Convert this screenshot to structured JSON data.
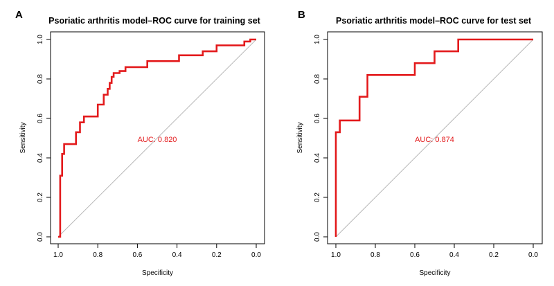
{
  "chart_data": [
    {
      "type": "line",
      "panel_label": "A",
      "title": "Psoriatic arthritis model–ROC curve for training set",
      "xlabel": "Specificity",
      "ylabel": "Sensitivity",
      "xlim": [
        1.0,
        0.0
      ],
      "ylim": [
        0.0,
        1.0
      ],
      "x_reversed": true,
      "x_ticks": [
        1.0,
        0.8,
        0.6,
        0.4,
        0.2,
        0.0
      ],
      "x_tick_labels": [
        "1.0",
        "0.8",
        "0.6",
        "0.4",
        "0.2",
        "0.0"
      ],
      "y_ticks": [
        0.0,
        0.2,
        0.4,
        0.6,
        0.8,
        1.0
      ],
      "y_tick_labels": [
        "0.0",
        "0.2",
        "0.4",
        "0.6",
        "0.8",
        "1.0"
      ],
      "grid": false,
      "reference_line": true,
      "annotation": {
        "text": "AUC: 0.820",
        "x": 0.5,
        "y": 0.48
      },
      "line_color": "#e31a1c",
      "reference_color": "#b8b8b8",
      "series": [
        {
          "specificity": [
            1.0,
            0.99,
            0.99,
            0.98,
            0.98,
            0.97,
            0.97,
            0.94,
            0.94,
            0.91,
            0.91,
            0.89,
            0.89,
            0.87,
            0.87,
            0.8,
            0.8,
            0.77,
            0.77,
            0.75,
            0.75,
            0.74,
            0.74,
            0.73,
            0.73,
            0.72,
            0.72,
            0.69,
            0.69,
            0.66,
            0.66,
            0.55,
            0.55,
            0.39,
            0.39,
            0.27,
            0.27,
            0.2,
            0.2,
            0.06,
            0.06,
            0.03,
            0.03,
            0.0
          ],
          "sensitivity": [
            0.0,
            0.0,
            0.31,
            0.31,
            0.42,
            0.42,
            0.47,
            0.47,
            0.47,
            0.47,
            0.53,
            0.53,
            0.58,
            0.58,
            0.61,
            0.61,
            0.67,
            0.67,
            0.72,
            0.72,
            0.75,
            0.75,
            0.78,
            0.78,
            0.81,
            0.81,
            0.83,
            0.83,
            0.84,
            0.84,
            0.86,
            0.86,
            0.89,
            0.89,
            0.92,
            0.92,
            0.94,
            0.94,
            0.97,
            0.97,
            0.99,
            0.99,
            1.0,
            1.0
          ]
        }
      ]
    },
    {
      "type": "line",
      "panel_label": "B",
      "title": "Psoriatic arthritis model–ROC curve for test set",
      "xlabel": "Specificity",
      "ylabel": "Sensitivity",
      "xlim": [
        1.0,
        0.0
      ],
      "ylim": [
        0.0,
        1.0
      ],
      "x_reversed": true,
      "x_ticks": [
        1.0,
        0.8,
        0.6,
        0.4,
        0.2,
        0.0
      ],
      "x_tick_labels": [
        "1.0",
        "0.8",
        "0.6",
        "0.4",
        "0.2",
        "0.0"
      ],
      "y_ticks": [
        0.0,
        0.2,
        0.4,
        0.6,
        0.8,
        1.0
      ],
      "y_tick_labels": [
        "0.0",
        "0.2",
        "0.4",
        "0.6",
        "0.8",
        "1.0"
      ],
      "grid": false,
      "reference_line": true,
      "annotation": {
        "text": "AUC: 0.874",
        "x": 0.5,
        "y": 0.48
      },
      "line_color": "#e31a1c",
      "reference_color": "#b8b8b8",
      "series": [
        {
          "specificity": [
            1.0,
            1.0,
            0.98,
            0.98,
            0.96,
            0.96,
            0.88,
            0.88,
            0.84,
            0.84,
            0.6,
            0.6,
            0.5,
            0.5,
            0.38,
            0.38,
            0.0
          ],
          "sensitivity": [
            0.0,
            0.53,
            0.53,
            0.59,
            0.59,
            0.59,
            0.59,
            0.71,
            0.71,
            0.82,
            0.82,
            0.88,
            0.88,
            0.94,
            0.94,
            1.0,
            1.0
          ]
        }
      ]
    }
  ]
}
